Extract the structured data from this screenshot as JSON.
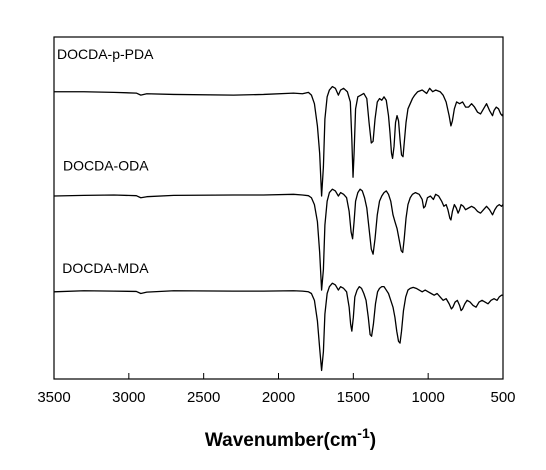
{
  "chart_data": {
    "type": "line",
    "title": "",
    "xlabel": "Wavenumber(cm",
    "xlabel_sup": "-1",
    "xlabel_close": ")",
    "ylabel": "",
    "xlim": [
      3500,
      500
    ],
    "x_reversed": true,
    "ylim": [
      0,
      10
    ],
    "y_ticks_shown": false,
    "grid": false,
    "legend": "none",
    "x_ticks": [
      {
        "value": 3500,
        "label": "3500"
      },
      {
        "value": 3000,
        "label": "3000"
      },
      {
        "value": 2500,
        "label": "2500"
      },
      {
        "value": 2000,
        "label": "2000"
      },
      {
        "value": 1500,
        "label": "1500"
      },
      {
        "value": 1000,
        "label": "1000"
      },
      {
        "value": 500,
        "label": "500"
      }
    ],
    "series": [
      {
        "name": "DOCDA-p-PDA",
        "color": "#000000",
        "label_at": {
          "x": 3480,
          "y": 9.35
        },
        "points": [
          [
            3500,
            8.4
          ],
          [
            3300,
            8.4
          ],
          [
            3100,
            8.38
          ],
          [
            2950,
            8.36
          ],
          [
            2920,
            8.3
          ],
          [
            2880,
            8.34
          ],
          [
            2700,
            8.32
          ],
          [
            2300,
            8.3
          ],
          [
            2100,
            8.32
          ],
          [
            1900,
            8.36
          ],
          [
            1840,
            8.34
          ],
          [
            1800,
            8.38
          ],
          [
            1780,
            8.3
          ],
          [
            1760,
            8.05
          ],
          [
            1740,
            7.4
          ],
          [
            1725,
            6.6
          ],
          [
            1712,
            5.35
          ],
          [
            1700,
            6.2
          ],
          [
            1690,
            7.6
          ],
          [
            1675,
            8.25
          ],
          [
            1660,
            8.45
          ],
          [
            1640,
            8.55
          ],
          [
            1620,
            8.5
          ],
          [
            1600,
            8.3
          ],
          [
            1585,
            8.45
          ],
          [
            1565,
            8.5
          ],
          [
            1540,
            8.4
          ],
          [
            1520,
            8.1
          ],
          [
            1510,
            7.0
          ],
          [
            1502,
            5.9
          ],
          [
            1495,
            6.6
          ],
          [
            1485,
            7.9
          ],
          [
            1470,
            8.25
          ],
          [
            1450,
            8.3
          ],
          [
            1430,
            8.35
          ],
          [
            1410,
            8.2
          ],
          [
            1395,
            7.5
          ],
          [
            1380,
            6.9
          ],
          [
            1368,
            6.95
          ],
          [
            1355,
            7.6
          ],
          [
            1340,
            8.1
          ],
          [
            1325,
            8.2
          ],
          [
            1310,
            8.15
          ],
          [
            1295,
            8.25
          ],
          [
            1280,
            8.15
          ],
          [
            1265,
            7.7
          ],
          [
            1255,
            7.2
          ],
          [
            1245,
            6.6
          ],
          [
            1238,
            6.45
          ],
          [
            1228,
            6.8
          ],
          [
            1218,
            7.5
          ],
          [
            1208,
            7.7
          ],
          [
            1198,
            7.55
          ],
          [
            1188,
            7.0
          ],
          [
            1178,
            6.55
          ],
          [
            1168,
            6.5
          ],
          [
            1158,
            7.0
          ],
          [
            1148,
            7.5
          ],
          [
            1135,
            7.9
          ],
          [
            1120,
            8.05
          ],
          [
            1105,
            8.2
          ],
          [
            1090,
            8.3
          ],
          [
            1070,
            8.4
          ],
          [
            1040,
            8.45
          ],
          [
            1010,
            8.35
          ],
          [
            990,
            8.5
          ],
          [
            970,
            8.4
          ],
          [
            950,
            8.45
          ],
          [
            920,
            8.4
          ],
          [
            900,
            8.3
          ],
          [
            880,
            8.1
          ],
          [
            860,
            7.7
          ],
          [
            848,
            7.4
          ],
          [
            838,
            7.55
          ],
          [
            825,
            7.9
          ],
          [
            810,
            8.1
          ],
          [
            790,
            8.05
          ],
          [
            770,
            8.1
          ],
          [
            750,
            7.95
          ],
          [
            730,
            7.95
          ],
          [
            710,
            8.05
          ],
          [
            690,
            7.95
          ],
          [
            670,
            7.8
          ],
          [
            650,
            7.75
          ],
          [
            630,
            7.9
          ],
          [
            610,
            8.05
          ],
          [
            590,
            7.85
          ],
          [
            570,
            7.7
          ],
          [
            560,
            7.85
          ],
          [
            545,
            7.95
          ],
          [
            530,
            7.9
          ],
          [
            515,
            7.75
          ],
          [
            505,
            7.7
          ],
          [
            500,
            7.75
          ]
        ]
      },
      {
        "name": "DOCDA-ODA",
        "color": "#000000",
        "label_at": {
          "x": 3440,
          "y": 6.1
        },
        "points": [
          [
            3500,
            5.35
          ],
          [
            3300,
            5.37
          ],
          [
            3100,
            5.38
          ],
          [
            2950,
            5.36
          ],
          [
            2920,
            5.3
          ],
          [
            2880,
            5.33
          ],
          [
            2700,
            5.37
          ],
          [
            2300,
            5.38
          ],
          [
            2100,
            5.38
          ],
          [
            1900,
            5.4
          ],
          [
            1840,
            5.38
          ],
          [
            1800,
            5.36
          ],
          [
            1780,
            5.3
          ],
          [
            1760,
            5.1
          ],
          [
            1740,
            4.6
          ],
          [
            1725,
            3.7
          ],
          [
            1712,
            2.6
          ],
          [
            1700,
            3.2
          ],
          [
            1690,
            4.5
          ],
          [
            1675,
            5.2
          ],
          [
            1660,
            5.45
          ],
          [
            1640,
            5.55
          ],
          [
            1620,
            5.5
          ],
          [
            1600,
            5.35
          ],
          [
            1585,
            5.45
          ],
          [
            1565,
            5.4
          ],
          [
            1545,
            5.3
          ],
          [
            1528,
            4.9
          ],
          [
            1515,
            4.3
          ],
          [
            1505,
            4.1
          ],
          [
            1495,
            4.6
          ],
          [
            1485,
            5.2
          ],
          [
            1470,
            5.45
          ],
          [
            1455,
            5.55
          ],
          [
            1440,
            5.5
          ],
          [
            1425,
            5.3
          ],
          [
            1410,
            5.0
          ],
          [
            1395,
            4.4
          ],
          [
            1380,
            3.8
          ],
          [
            1368,
            3.65
          ],
          [
            1355,
            4.1
          ],
          [
            1340,
            4.8
          ],
          [
            1325,
            5.2
          ],
          [
            1310,
            5.35
          ],
          [
            1295,
            5.45
          ],
          [
            1280,
            5.5
          ],
          [
            1265,
            5.4
          ],
          [
            1250,
            5.2
          ],
          [
            1235,
            4.8
          ],
          [
            1222,
            4.6
          ],
          [
            1208,
            4.4
          ],
          [
            1195,
            4.1
          ],
          [
            1180,
            3.75
          ],
          [
            1170,
            3.7
          ],
          [
            1160,
            4.1
          ],
          [
            1148,
            4.7
          ],
          [
            1135,
            5.1
          ],
          [
            1120,
            5.3
          ],
          [
            1105,
            5.4
          ],
          [
            1085,
            5.45
          ],
          [
            1060,
            5.4
          ],
          [
            1040,
            5.25
          ],
          [
            1030,
            5.0
          ],
          [
            1020,
            5.05
          ],
          [
            1005,
            5.3
          ],
          [
            985,
            5.35
          ],
          [
            965,
            5.25
          ],
          [
            950,
            5.4
          ],
          [
            930,
            5.35
          ],
          [
            910,
            5.2
          ],
          [
            895,
            5.05
          ],
          [
            880,
            5.1
          ],
          [
            868,
            4.95
          ],
          [
            855,
            4.7
          ],
          [
            848,
            4.65
          ],
          [
            838,
            4.9
          ],
          [
            825,
            5.1
          ],
          [
            812,
            5.0
          ],
          [
            800,
            4.85
          ],
          [
            790,
            4.95
          ],
          [
            780,
            5.1
          ],
          [
            765,
            5.05
          ],
          [
            750,
            4.95
          ],
          [
            730,
            5.0
          ],
          [
            710,
            5.05
          ],
          [
            690,
            5.0
          ],
          [
            670,
            4.9
          ],
          [
            650,
            4.85
          ],
          [
            630,
            4.95
          ],
          [
            610,
            5.05
          ],
          [
            590,
            4.95
          ],
          [
            570,
            4.8
          ],
          [
            555,
            4.95
          ],
          [
            540,
            5.05
          ],
          [
            525,
            5.1
          ],
          [
            510,
            5.05
          ],
          [
            500,
            5.1
          ]
        ]
      },
      {
        "name": "DOCDA-MDA",
        "color": "#000000",
        "label_at": {
          "x": 3445,
          "y": 3.1
        },
        "points": [
          [
            3500,
            2.55
          ],
          [
            3300,
            2.58
          ],
          [
            3100,
            2.57
          ],
          [
            2950,
            2.56
          ],
          [
            2920,
            2.5
          ],
          [
            2880,
            2.54
          ],
          [
            2700,
            2.58
          ],
          [
            2300,
            2.57
          ],
          [
            2100,
            2.57
          ],
          [
            1900,
            2.58
          ],
          [
            1840,
            2.57
          ],
          [
            1800,
            2.55
          ],
          [
            1780,
            2.5
          ],
          [
            1760,
            2.3
          ],
          [
            1740,
            1.7
          ],
          [
            1725,
            0.9
          ],
          [
            1712,
            0.25
          ],
          [
            1700,
            0.8
          ],
          [
            1690,
            1.9
          ],
          [
            1675,
            2.5
          ],
          [
            1660,
            2.7
          ],
          [
            1640,
            2.8
          ],
          [
            1620,
            2.75
          ],
          [
            1600,
            2.6
          ],
          [
            1585,
            2.7
          ],
          [
            1565,
            2.65
          ],
          [
            1545,
            2.55
          ],
          [
            1528,
            2.1
          ],
          [
            1518,
            1.6
          ],
          [
            1510,
            1.4
          ],
          [
            1500,
            1.8
          ],
          [
            1490,
            2.4
          ],
          [
            1475,
            2.6
          ],
          [
            1460,
            2.7
          ],
          [
            1445,
            2.65
          ],
          [
            1430,
            2.5
          ],
          [
            1415,
            2.3
          ],
          [
            1400,
            1.8
          ],
          [
            1388,
            1.3
          ],
          [
            1378,
            1.25
          ],
          [
            1366,
            1.6
          ],
          [
            1352,
            2.2
          ],
          [
            1338,
            2.55
          ],
          [
            1325,
            2.65
          ],
          [
            1310,
            2.7
          ],
          [
            1295,
            2.7
          ],
          [
            1280,
            2.6
          ],
          [
            1265,
            2.5
          ],
          [
            1250,
            2.3
          ],
          [
            1235,
            2.1
          ],
          [
            1222,
            1.8
          ],
          [
            1210,
            1.4
          ],
          [
            1198,
            1.1
          ],
          [
            1188,
            1.05
          ],
          [
            1178,
            1.4
          ],
          [
            1165,
            2.0
          ],
          [
            1150,
            2.4
          ],
          [
            1135,
            2.6
          ],
          [
            1120,
            2.65
          ],
          [
            1100,
            2.68
          ],
          [
            1080,
            2.65
          ],
          [
            1060,
            2.6
          ],
          [
            1040,
            2.55
          ],
          [
            1020,
            2.6
          ],
          [
            1000,
            2.55
          ],
          [
            980,
            2.5
          ],
          [
            960,
            2.45
          ],
          [
            940,
            2.5
          ],
          [
            920,
            2.4
          ],
          [
            900,
            2.3
          ],
          [
            880,
            2.35
          ],
          [
            860,
            2.2
          ],
          [
            845,
            2.05
          ],
          [
            835,
            2.1
          ],
          [
            820,
            2.25
          ],
          [
            805,
            2.3
          ],
          [
            790,
            2.15
          ],
          [
            780,
            2.0
          ],
          [
            770,
            2.05
          ],
          [
            755,
            2.2
          ],
          [
            740,
            2.3
          ],
          [
            720,
            2.25
          ],
          [
            700,
            2.15
          ],
          [
            680,
            2.1
          ],
          [
            660,
            2.25
          ],
          [
            640,
            2.3
          ],
          [
            620,
            2.25
          ],
          [
            600,
            2.2
          ],
          [
            580,
            2.3
          ],
          [
            560,
            2.35
          ],
          [
            540,
            2.3
          ],
          [
            525,
            2.4
          ],
          [
            510,
            2.45
          ],
          [
            500,
            2.45
          ]
        ]
      }
    ]
  }
}
